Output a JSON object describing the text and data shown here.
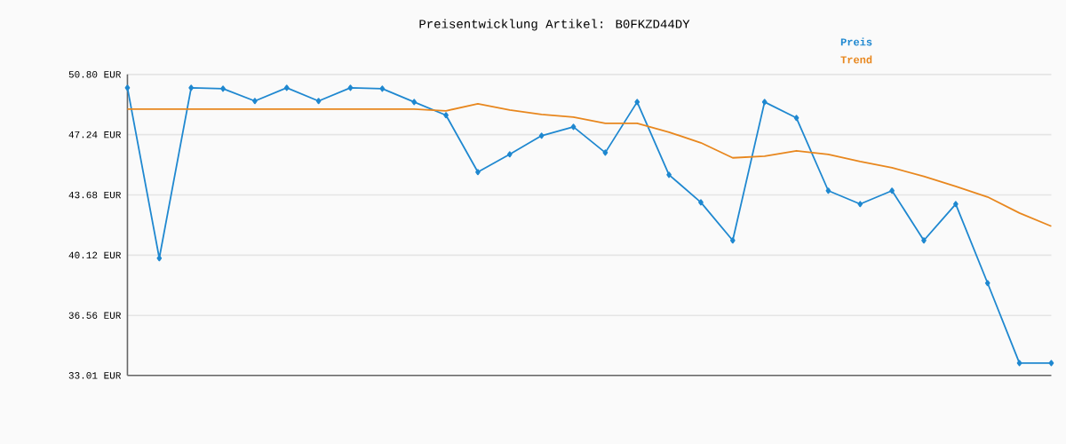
{
  "chart_data": {
    "type": "line",
    "title": "Preisentwicklung Artikel: B0FKZD44DY",
    "categories": [
      null,
      null,
      null,
      null,
      null,
      null,
      null,
      null,
      null,
      null,
      null,
      null,
      null,
      null,
      null,
      null,
      null,
      null,
      null,
      null,
      null,
      null,
      null,
      null,
      null,
      null,
      null,
      null,
      null,
      null
    ],
    "series": [
      {
        "name": "Preis",
        "color": "#1f88d0",
        "marker": "diamond",
        "values": [
          50.01,
          39.94,
          50.01,
          49.96,
          49.23,
          50.01,
          49.23,
          50.01,
          49.96,
          49.17,
          48.39,
          45.03,
          46.08,
          47.18,
          47.7,
          46.18,
          49.17,
          44.87,
          43.24,
          40.99,
          49.17,
          48.23,
          43.93,
          43.14,
          43.93,
          40.99,
          43.14,
          38.47,
          33.74,
          33.74
        ]
      },
      {
        "name": "Trend",
        "color": "#e8871e",
        "marker": "none",
        "values": [
          48.75,
          48.75,
          48.75,
          48.75,
          48.75,
          48.75,
          48.75,
          48.75,
          48.75,
          48.75,
          48.65,
          49.07,
          48.7,
          48.44,
          48.28,
          47.91,
          47.91,
          47.39,
          46.76,
          45.87,
          45.97,
          46.29,
          46.08,
          45.66,
          45.29,
          44.77,
          44.19,
          43.56,
          42.61,
          41.83
        ]
      }
    ],
    "ylim": [
      33.01,
      50.8
    ],
    "yticks": [
      {
        "value": 33.01,
        "label": "33.01 EUR"
      },
      {
        "value": 36.56,
        "label": "36.56 EUR"
      },
      {
        "value": 40.12,
        "label": "40.12 EUR"
      },
      {
        "value": 43.68,
        "label": "43.68 EUR"
      },
      {
        "value": 47.24,
        "label": "47.24 EUR"
      },
      {
        "value": 50.8,
        "label": "50.80 EUR"
      }
    ],
    "grid": "y",
    "legend": "top right"
  }
}
